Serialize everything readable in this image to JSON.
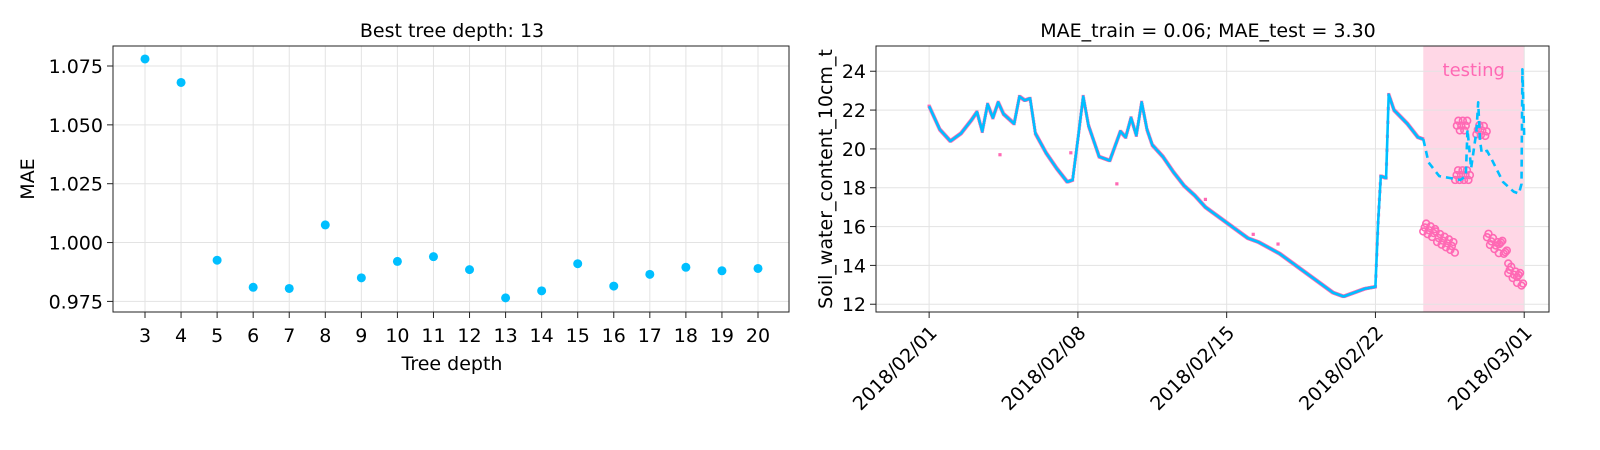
{
  "chart_data": [
    {
      "type": "scatter",
      "title": "Best tree depth: 13",
      "xlabel": "Tree depth",
      "ylabel": "MAE",
      "categories": [
        "3",
        "4",
        "5",
        "6",
        "7",
        "8",
        "9",
        "10",
        "11",
        "12",
        "13",
        "14",
        "15",
        "16",
        "17",
        "18",
        "19",
        "20"
      ],
      "series": [
        {
          "values": [
            1.078,
            1.068,
            0.9925,
            0.981,
            0.9805,
            1.0075,
            0.985,
            0.992,
            0.994,
            0.9885,
            0.9765,
            0.9795,
            0.991,
            0.9815,
            0.9865,
            0.9895,
            0.988,
            0.989
          ]
        }
      ],
      "ylim": [
        0.9705,
        1.0835
      ],
      "yticks": [
        "0.975",
        "1.000",
        "1.025",
        "1.050",
        "1.075"
      ],
      "grid": true,
      "point_color": "#00bfff"
    },
    {
      "type": "line",
      "title": "MAE_train = 0.06; MAE_test = 3.30",
      "xlabel": "",
      "ylabel": "Soil_water_content_10cm_t",
      "xticks": [
        "2018/02/01",
        "2018/02/08",
        "2018/02/15",
        "2018/02/22",
        "2018/03/01"
      ],
      "xlim": [
        "2018-01-29T12:00",
        "2018-03-02T04:00"
      ],
      "ylim": [
        11.6,
        25.3
      ],
      "yticks": [
        "12",
        "14",
        "16",
        "18",
        "20",
        "22",
        "24"
      ],
      "grid": true,
      "testing_label": "testing",
      "testing_span": [
        "2018-02-24T06:00",
        "2018-03-01T00:00"
      ],
      "colors": {
        "model": "#00bfff",
        "observed": "#ff69b4",
        "testing_band": "#ffb6d2"
      },
      "series": [
        {
          "style": "solid",
          "points": [
            [
              "2018-02-01T00:00",
              22.2
            ],
            [
              "2018-02-01T12:00",
              21.0
            ],
            [
              "2018-02-02T00:00",
              20.4
            ],
            [
              "2018-02-02T12:00",
              20.8
            ],
            [
              "2018-02-03T00:00",
              21.5
            ],
            [
              "2018-02-03T06:00",
              21.9
            ],
            [
              "2018-02-03T12:00",
              20.9
            ],
            [
              "2018-02-03T18:00",
              22.3
            ],
            [
              "2018-02-04T00:00",
              21.6
            ],
            [
              "2018-02-04T06:00",
              22.4
            ],
            [
              "2018-02-04T12:00",
              21.8
            ],
            [
              "2018-02-05T00:00",
              21.3
            ],
            [
              "2018-02-05T06:00",
              22.7
            ],
            [
              "2018-02-05T12:00",
              22.5
            ],
            [
              "2018-02-05T18:00",
              22.6
            ],
            [
              "2018-02-06T00:00",
              20.8
            ],
            [
              "2018-02-06T12:00",
              19.8
            ],
            [
              "2018-02-07T00:00",
              19.0
            ],
            [
              "2018-02-07T12:00",
              18.3
            ],
            [
              "2018-02-07T18:00",
              18.4
            ],
            [
              "2018-02-08T00:00",
              20.5
            ],
            [
              "2018-02-08T06:00",
              22.7
            ],
            [
              "2018-02-08T12:00",
              21.2
            ],
            [
              "2018-02-09T00:00",
              19.6
            ],
            [
              "2018-02-09T12:00",
              19.4
            ],
            [
              "2018-02-10T00:00",
              20.9
            ],
            [
              "2018-02-10T06:00",
              20.6
            ],
            [
              "2018-02-10T12:00",
              21.6
            ],
            [
              "2018-02-10T18:00",
              20.7
            ],
            [
              "2018-02-11T00:00",
              22.4
            ],
            [
              "2018-02-11T06:00",
              21.0
            ],
            [
              "2018-02-11T12:00",
              20.2
            ],
            [
              "2018-02-12T00:00",
              19.6
            ],
            [
              "2018-02-12T12:00",
              18.8
            ],
            [
              "2018-02-13T00:00",
              18.1
            ],
            [
              "2018-02-13T12:00",
              17.6
            ],
            [
              "2018-02-14T00:00",
              17.0
            ],
            [
              "2018-02-14T12:00",
              16.6
            ],
            [
              "2018-02-15T00:00",
              16.2
            ],
            [
              "2018-02-15T12:00",
              15.8
            ],
            [
              "2018-02-16T00:00",
              15.4
            ],
            [
              "2018-02-16T12:00",
              15.2
            ],
            [
              "2018-02-17T00:00",
              14.9
            ],
            [
              "2018-02-17T12:00",
              14.6
            ],
            [
              "2018-02-18T00:00",
              14.2
            ],
            [
              "2018-02-18T12:00",
              13.8
            ],
            [
              "2018-02-19T00:00",
              13.4
            ],
            [
              "2018-02-19T12:00",
              13.0
            ],
            [
              "2018-02-20T00:00",
              12.6
            ],
            [
              "2018-02-20T12:00",
              12.4
            ],
            [
              "2018-02-21T00:00",
              12.6
            ],
            [
              "2018-02-21T12:00",
              12.8
            ],
            [
              "2018-02-22T00:00",
              12.9
            ],
            [
              "2018-02-22T03:00",
              16.2
            ],
            [
              "2018-02-22T06:00",
              18.6
            ],
            [
              "2018-02-22T12:00",
              18.5
            ],
            [
              "2018-02-22T15:00",
              22.8
            ],
            [
              "2018-02-22T21:00",
              22.0
            ],
            [
              "2018-02-23T12:00",
              21.3
            ],
            [
              "2018-02-24T00:00",
              20.6
            ],
            [
              "2018-02-24T06:00",
              20.5
            ]
          ]
        },
        {
          "style": "dashed",
          "points": [
            [
              "2018-02-24T06:00",
              20.5
            ],
            [
              "2018-02-24T12:00",
              19.3
            ],
            [
              "2018-02-25T00:00",
              18.6
            ],
            [
              "2018-02-25T12:00",
              18.5
            ],
            [
              "2018-02-26T00:00",
              18.4
            ],
            [
              "2018-02-26T06:00",
              18.6
            ],
            [
              "2018-02-26T08:00",
              21.0
            ],
            [
              "2018-02-26T12:00",
              19.0
            ],
            [
              "2018-02-26T18:00",
              20.9
            ],
            [
              "2018-02-26T20:00",
              22.4
            ],
            [
              "2018-02-26T22:00",
              20.5
            ],
            [
              "2018-02-27T00:00",
              19.8
            ],
            [
              "2018-02-27T06:00",
              19.9
            ],
            [
              "2018-02-27T12:00",
              19.4
            ],
            [
              "2018-02-28T00:00",
              18.3
            ],
            [
              "2018-02-28T12:00",
              17.8
            ],
            [
              "2018-02-28T18:00",
              17.7
            ],
            [
              "2018-02-28T21:00",
              18.2
            ],
            [
              "2018-02-28T22:00",
              24.1
            ],
            [
              "2018-03-01T00:00",
              20.6
            ]
          ]
        }
      ]
    }
  ]
}
